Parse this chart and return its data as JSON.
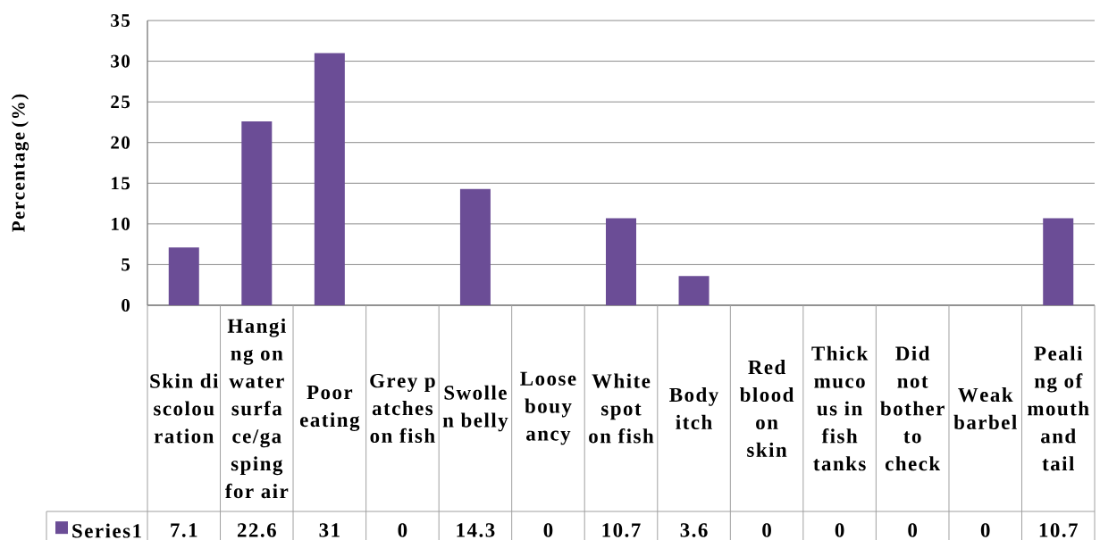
{
  "chart_data": {
    "type": "bar",
    "ylabel": "Percentage (%)",
    "categories": [
      "Skin discolouration",
      "Hanging on water surface/gasping for air",
      "Poor eating",
      "Grey patches on fish",
      "Swollen belly",
      "Loose bouyancy",
      "White spot on fish",
      "Body itch",
      "Red blood on skin",
      "Thick mucous in fish tanks",
      "Did not bother to check",
      "Weak barbel",
      "Pealing of mouth and tail"
    ],
    "series": [
      {
        "name": "Series1",
        "color": "#6b4d96",
        "values": [
          7.1,
          22.6,
          31,
          0,
          14.3,
          0,
          10.7,
          3.6,
          0,
          0,
          0,
          0,
          10.7
        ]
      }
    ],
    "ylim": [
      0,
      35
    ],
    "yticks": [
      0,
      5,
      10,
      15,
      20,
      25,
      30,
      35
    ],
    "grid": "y",
    "legend": "bottom",
    "data_labels": true
  }
}
